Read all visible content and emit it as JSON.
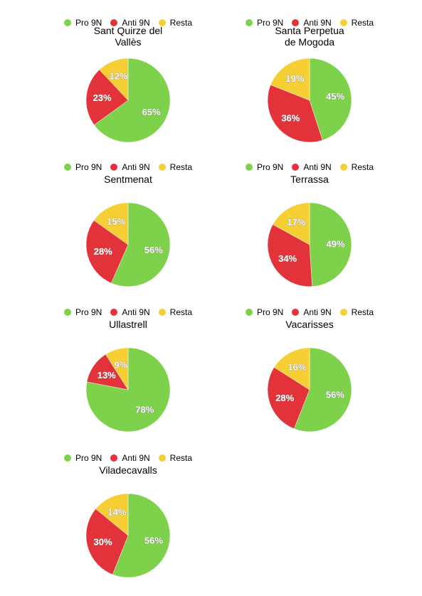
{
  "chart_data": [
    {
      "type": "pie",
      "title": "Sant Quirze del\nVallès",
      "categories": [
        "Pro 9N",
        "Anti 9N",
        "Resta"
      ],
      "values": [
        65,
        23,
        12
      ],
      "labels": [
        "65%",
        "23%",
        "12%"
      ],
      "colors": [
        "#7ed14a",
        "#e2333a",
        "#f5cf34"
      ],
      "legend": "top"
    },
    {
      "type": "pie",
      "title": "Santa Perpetua\nde Mogoda",
      "categories": [
        "Pro 9N",
        "Anti 9N",
        "Resta"
      ],
      "values": [
        45,
        36,
        19
      ],
      "labels": [
        "45%",
        "36%",
        "19%"
      ],
      "colors": [
        "#7ed14a",
        "#e2333a",
        "#f5cf34"
      ],
      "legend": "top"
    },
    {
      "type": "pie",
      "title": "Sentmenat",
      "categories": [
        "Pro 9N",
        "Anti 9N",
        "Resta"
      ],
      "values": [
        56,
        28,
        15
      ],
      "labels": [
        "56%",
        "28%",
        "15%"
      ],
      "colors": [
        "#7ed14a",
        "#e2333a",
        "#f5cf34"
      ],
      "legend": "top"
    },
    {
      "type": "pie",
      "title": "Terrassa",
      "categories": [
        "Pro 9N",
        "Anti 9N",
        "Resta"
      ],
      "values": [
        49,
        34,
        17
      ],
      "labels": [
        "49%",
        "34%",
        "17%"
      ],
      "colors": [
        "#7ed14a",
        "#e2333a",
        "#f5cf34"
      ],
      "legend": "top"
    },
    {
      "type": "pie",
      "title": "Ullastrell",
      "categories": [
        "Pro 9N",
        "Anti 9N",
        "Resta"
      ],
      "values": [
        78,
        13,
        9
      ],
      "labels": [
        "78%",
        "13%",
        "9%"
      ],
      "colors": [
        "#7ed14a",
        "#e2333a",
        "#f5cf34"
      ],
      "legend": "top"
    },
    {
      "type": "pie",
      "title": "Vacarisses",
      "categories": [
        "Pro 9N",
        "Anti 9N",
        "Resta"
      ],
      "values": [
        56,
        28,
        16
      ],
      "labels": [
        "56%",
        "28%",
        "16%"
      ],
      "colors": [
        "#7ed14a",
        "#e2333a",
        "#f5cf34"
      ],
      "legend": "top"
    },
    {
      "type": "pie",
      "title": "Viladecavalls",
      "categories": [
        "Pro 9N",
        "Anti 9N",
        "Resta"
      ],
      "values": [
        56,
        30,
        14
      ],
      "labels": [
        "56%",
        "30%",
        "14%"
      ],
      "colors": [
        "#7ed14a",
        "#e2333a",
        "#f5cf34"
      ],
      "legend": "top"
    }
  ]
}
